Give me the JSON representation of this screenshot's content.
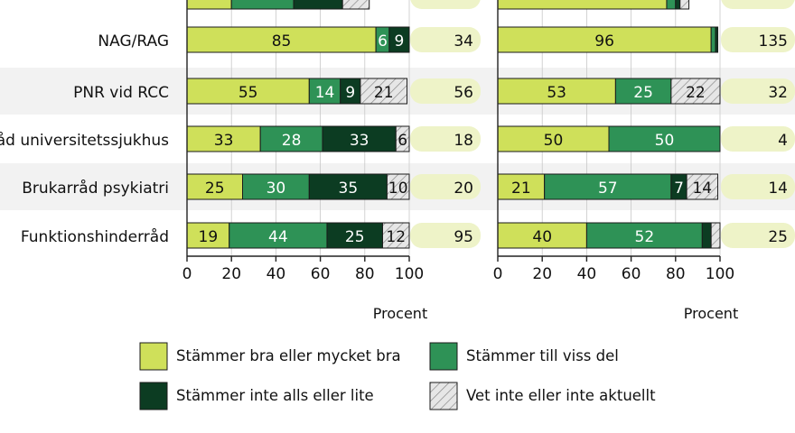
{
  "chart_data": {
    "type": "bar",
    "orientation": "horizontal",
    "stacked": true,
    "xlabel": "Procent",
    "xlim": [
      0,
      100
    ],
    "xticks": [
      "0",
      "20",
      "40",
      "60",
      "80",
      "100"
    ],
    "categories": [
      "NAG/RAG",
      "PNR vid RCC",
      "Råd universitetssjukhus",
      "Brukarråd psykiatri",
      "Funktionshinderråd"
    ],
    "colors": {
      "good": "#cfe05a",
      "some": "#2e9256",
      "little": "#0c3c22",
      "unknown": "#d9d9d9",
      "count_bg": "#eef3c8",
      "row_bg": "#f2f2f2"
    },
    "panels": [
      {
        "top_row": {
          "segments": [
            20,
            28,
            22,
            12
          ],
          "count": ""
        },
        "rows": [
          {
            "segments": [
              85,
              6,
              9,
              0
            ],
            "labels": [
              "85",
              "6",
              "9",
              ""
            ],
            "count": "34"
          },
          {
            "segments": [
              55,
              14,
              9,
              21
            ],
            "labels": [
              "55",
              "14",
              "9",
              "21"
            ],
            "count": "56"
          },
          {
            "segments": [
              33,
              28,
              33,
              6
            ],
            "labels": [
              "33",
              "28",
              "33",
              "6"
            ],
            "count": "18"
          },
          {
            "segments": [
              25,
              30,
              35,
              10
            ],
            "labels": [
              "25",
              "30",
              "35",
              "10"
            ],
            "count": "20"
          },
          {
            "segments": [
              19,
              44,
              25,
              12
            ],
            "labels": [
              "19",
              "44",
              "25",
              "12"
            ],
            "count": "95"
          }
        ]
      },
      {
        "top_row": {
          "segments": [
            76,
            4,
            2,
            4
          ],
          "count": ""
        },
        "rows": [
          {
            "segments": [
              96,
              2,
              1,
              0
            ],
            "labels": [
              "96",
              "",
              "",
              ""
            ],
            "count": "135"
          },
          {
            "segments": [
              53,
              25,
              0,
              22
            ],
            "labels": [
              "53",
              "25",
              "",
              "22"
            ],
            "count": "32"
          },
          {
            "segments": [
              50,
              50,
              0,
              0
            ],
            "labels": [
              "50",
              "50",
              "",
              ""
            ],
            "count": "4"
          },
          {
            "segments": [
              21,
              57,
              7,
              14
            ],
            "labels": [
              "21",
              "57",
              "7",
              "14"
            ],
            "count": "14"
          },
          {
            "segments": [
              40,
              52,
              4,
              4
            ],
            "labels": [
              "40",
              "52",
              "",
              ""
            ],
            "count": "25"
          }
        ]
      }
    ],
    "legend": [
      {
        "key": "good",
        "label": "Stämmer bra eller mycket bra"
      },
      {
        "key": "some",
        "label": "Stämmer till viss del"
      },
      {
        "key": "little",
        "label": "Stämmer inte alls eller lite"
      },
      {
        "key": "unknown",
        "label": "Vet inte eller inte aktuellt"
      }
    ]
  }
}
